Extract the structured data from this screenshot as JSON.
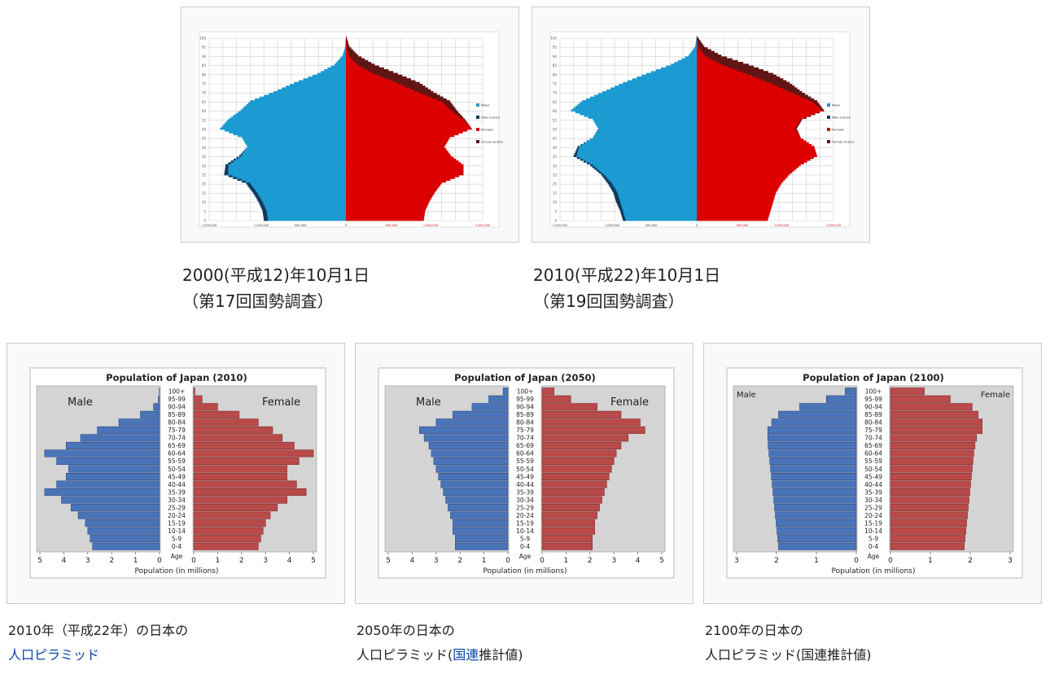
{
  "colors": {
    "male_blue": "#1b9bd1",
    "female_red": "#dc0000",
    "male_excess": "#13375a",
    "female_excess": "#5c1616",
    "bottom_male": "#4a74b8",
    "bottom_female": "#b84a4a",
    "plot_bg": "#d4d4d4",
    "link": "#0645ad"
  },
  "captions": {
    "top_left_line1": "2000(平成12)年10月1日",
    "top_left_line2": "（第17回国勢調査）",
    "top_right_line1": "2010(平成22)年10月1日",
    "top_right_line2": "（第19回国勢調査）",
    "bottom1_line1": "2010年（平成22年）の日本の",
    "bottom1_link": "人口ピラミッド",
    "bottom2_line1": "2050年の日本の",
    "bottom2_pre": "人口ピラミッド(",
    "bottom2_link": "国連",
    "bottom2_post": "推計値)",
    "bottom3_line1": "2100年の日本の",
    "bottom3_line2": "人口ピラミッド(国連推計値)"
  },
  "chart_data": [
    {
      "type": "bar",
      "id": "pyramid_2000",
      "orientation": "horizontal-pyramid",
      "age_ticks": [
        "0",
        "5",
        "10",
        "15",
        "20",
        "25",
        "30",
        "35",
        "40",
        "45",
        "50",
        "55",
        "60",
        "65",
        "70",
        "75",
        "80",
        "85",
        "90",
        "95",
        "100"
      ],
      "x_tick_labels": [
        "1,000,000",
        "1,000,000",
        "500,000",
        "0",
        "500,000",
        "1,000,000",
        "1,000,000"
      ],
      "xlim": [
        -1000000,
        1000000
      ],
      "ages": [
        0,
        5,
        10,
        15,
        20,
        25,
        30,
        35,
        40,
        45,
        50,
        55,
        60,
        65,
        70,
        75,
        80,
        85,
        90,
        95,
        100
      ],
      "male": [
        600000,
        610000,
        640000,
        680000,
        730000,
        890000,
        880000,
        780000,
        720000,
        760000,
        920000,
        860000,
        770000,
        700000,
        530000,
        380000,
        210000,
        85000,
        25000,
        5000,
        1000
      ],
      "female": [
        570000,
        580000,
        610000,
        650000,
        700000,
        860000,
        860000,
        770000,
        720000,
        760000,
        920000,
        870000,
        810000,
        760000,
        640000,
        540000,
        380000,
        210000,
        90000,
        25000,
        4000
      ],
      "legend": [
        "Males",
        "Male surplus",
        "Females",
        "Female surplus"
      ],
      "grid": true
    },
    {
      "type": "bar",
      "id": "pyramid_2010",
      "orientation": "horizontal-pyramid",
      "age_ticks": [
        "0",
        "5",
        "10",
        "15",
        "20",
        "25",
        "30",
        "35",
        "40",
        "45",
        "50",
        "55",
        "60",
        "65",
        "70",
        "75",
        "80",
        "85",
        "90",
        "95",
        "100"
      ],
      "x_tick_labels": [
        "1,000,000",
        "1,000,000",
        "500,000",
        "0",
        "500,000",
        "1,000,000",
        "1,000,000"
      ],
      "xlim": [
        -1000000,
        1000000
      ],
      "ages": [
        0,
        5,
        10,
        15,
        20,
        25,
        30,
        35,
        40,
        45,
        50,
        55,
        60,
        65,
        70,
        75,
        80,
        85,
        90,
        95,
        100
      ],
      "male": [
        540000,
        560000,
        590000,
        610000,
        650000,
        700000,
        780000,
        900000,
        870000,
        760000,
        720000,
        760000,
        920000,
        840000,
        690000,
        540000,
        370000,
        190000,
        60000,
        12000,
        2000
      ],
      "female": [
        520000,
        540000,
        560000,
        580000,
        620000,
        680000,
        760000,
        880000,
        860000,
        760000,
        730000,
        770000,
        930000,
        880000,
        770000,
        680000,
        560000,
        380000,
        180000,
        55000,
        8000
      ],
      "legend": [
        "Males",
        "Male surplus",
        "Females",
        "Female surplus"
      ],
      "grid": true
    },
    {
      "type": "bar",
      "id": "pyramid_japan_2010",
      "title": "Population of Japan (2010)",
      "xlabel": "Population (in millions)",
      "age_labels": [
        "0-4",
        "5-9",
        "10-14",
        "15-19",
        "20-24",
        "25-29",
        "30-34",
        "35-39",
        "40-44",
        "45-49",
        "50-54",
        "55-59",
        "60-64",
        "65-69",
        "70-74",
        "75-79",
        "80-84",
        "85-89",
        "90-94",
        "95-99",
        "100+"
      ],
      "axis_label": "Age",
      "male_label": "Male",
      "female_label": "Female",
      "xlim": [
        0,
        5
      ],
      "x_ticks": [
        5,
        4,
        3,
        2,
        1,
        0
      ],
      "male": [
        2.8,
        2.9,
        3.0,
        3.1,
        3.4,
        3.7,
        4.1,
        4.8,
        4.3,
        3.9,
        3.8,
        4.3,
        4.8,
        3.9,
        3.3,
        2.6,
        1.7,
        0.8,
        0.25,
        0.05,
        0.01
      ],
      "female": [
        2.7,
        2.8,
        2.9,
        3.0,
        3.2,
        3.5,
        3.9,
        4.7,
        4.3,
        3.9,
        3.9,
        4.4,
        5.0,
        4.2,
        3.7,
        3.3,
        2.7,
        1.9,
        1.0,
        0.35,
        0.05
      ]
    },
    {
      "type": "bar",
      "id": "pyramid_japan_2050",
      "title": "Population of Japan (2050)",
      "xlabel": "Population (in millions)",
      "age_labels": [
        "0-4",
        "5-9",
        "10-14",
        "15-19",
        "20-24",
        "25-29",
        "30-34",
        "35-39",
        "40-44",
        "45-49",
        "50-54",
        "55-59",
        "60-64",
        "65-69",
        "70-74",
        "75-79",
        "80-84",
        "85-89",
        "90-94",
        "95-99",
        "100+"
      ],
      "axis_label": "Age",
      "male_label": "Male",
      "female_label": "Female",
      "xlim": [
        0,
        5
      ],
      "x_ticks": [
        5,
        4,
        3,
        2,
        1,
        0
      ],
      "male": [
        2.2,
        2.2,
        2.3,
        2.3,
        2.4,
        2.5,
        2.6,
        2.7,
        2.8,
        2.9,
        3.0,
        3.1,
        3.2,
        3.3,
        3.5,
        3.7,
        3.0,
        2.3,
        1.5,
        0.8,
        0.2
      ],
      "female": [
        2.1,
        2.1,
        2.2,
        2.2,
        2.3,
        2.4,
        2.5,
        2.6,
        2.7,
        2.8,
        2.9,
        3.0,
        3.1,
        3.3,
        3.6,
        4.3,
        4.1,
        3.3,
        2.3,
        1.2,
        0.5
      ]
    },
    {
      "type": "bar",
      "id": "pyramid_japan_2100",
      "title": "Population of Japan (2100)",
      "xlabel": "Population (in millions)",
      "age_labels": [
        "0-4",
        "5-9",
        "10-14",
        "15-19",
        "20-24",
        "25-29",
        "30-34",
        "35-39",
        "40-44",
        "45-49",
        "50-54",
        "55-59",
        "60-64",
        "65-69",
        "70-74",
        "75-79",
        "80-84",
        "85-89",
        "90-94",
        "95-99",
        "100+"
      ],
      "axis_label": "Age",
      "male_label": "Male",
      "female_label": "Female",
      "xlim": [
        0,
        3
      ],
      "x_ticks": [
        3,
        2,
        1,
        0
      ],
      "male": [
        1.95,
        1.97,
        1.99,
        2.01,
        2.03,
        2.05,
        2.07,
        2.09,
        2.11,
        2.13,
        2.15,
        2.17,
        2.19,
        2.21,
        2.22,
        2.22,
        2.12,
        1.95,
        1.42,
        0.75,
        0.28
      ],
      "female": [
        1.85,
        1.87,
        1.89,
        1.91,
        1.93,
        1.95,
        1.97,
        1.99,
        2.01,
        2.03,
        2.05,
        2.07,
        2.09,
        2.12,
        2.16,
        2.3,
        2.3,
        2.2,
        2.05,
        1.5,
        0.85
      ]
    }
  ]
}
